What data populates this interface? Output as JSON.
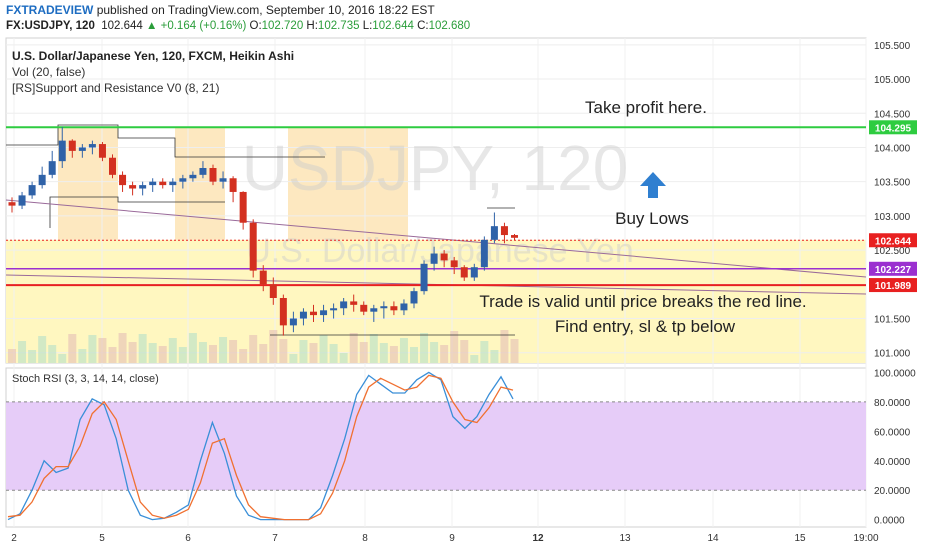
{
  "header": {
    "brand": "FXTRADEVIEW",
    "published": "published on TradingView.com, September 10, 2016 18:22 EST",
    "symbol": "FX:USDJPY, 120",
    "last": "102.644",
    "change_arrow": "▲",
    "change": "+0.164 (+0.16%)",
    "o_label": "O:",
    "o": "102.720",
    "h_label": "H:",
    "h": "102.735",
    "l_label": "L:",
    "l": "102.644",
    "c_label": "C:",
    "c": "102.680"
  },
  "legend": {
    "title": "U.S. Dollar/Japanese Yen, 120, FXCM, Heikin Ashi",
    "vol": "Vol (20, false)",
    "indicator": "[RS]Support and Resistance V0 (8, 21)"
  },
  "watermark": {
    "symbol": "USDJPY, 120",
    "name": "U.S. Dollar/Japanese Yen"
  },
  "annotations": {
    "take_profit": "Take profit here.",
    "buy_lows": "Buy Lows",
    "trade_valid": "Trade is valid until price breaks the red line.",
    "find_entry": "Find entry, sl & tp below"
  },
  "stoch_label": "Stoch RSI (3, 3, 14, 14, close)",
  "colors": {
    "up": "#2f62a8",
    "down": "#d33020",
    "green_line": "#2ecc40",
    "red_line": "#e82020",
    "purple_line": "#9b30d0",
    "trend_line": "#9a6a9a",
    "k_line": "#3a8fd8",
    "d_line": "#f07030",
    "rsi_band": "#e6ccf8",
    "zone_yellow": "#fff7c0",
    "zone_orange": "#fde2b0"
  },
  "chart_data": [
    {
      "type": "candlestick",
      "symbol": "FX:USDJPY",
      "interval": "120",
      "style": "Heikin Ashi",
      "ylim": [
        100.85,
        105.6
      ],
      "yticks": [
        "105.500",
        "105.000",
        "104.500",
        "104.000",
        "103.500",
        "103.000",
        "102.500",
        "102.000",
        "101.500",
        "101.000"
      ],
      "xticks": [
        "2",
        "5",
        "6",
        "7",
        "8",
        "9",
        "12",
        "13",
        "14",
        "15",
        "19:00"
      ],
      "price_labels": [
        {
          "value": 104.295,
          "text": "104.295",
          "color": "#2ecc40"
        },
        {
          "value": 102.644,
          "text": "102.644",
          "color": "#e82020"
        },
        {
          "value": 102.227,
          "text": "102.227",
          "color": "#9b30d0"
        },
        {
          "value": 101.989,
          "text": "101.989",
          "color": "#e82020"
        }
      ],
      "horizontal_lines": [
        {
          "name": "take-profit",
          "value": 104.295,
          "color": "#2ecc40"
        },
        {
          "name": "support-purple",
          "value": 102.227,
          "color": "#9b30d0"
        },
        {
          "name": "invalidation-red",
          "value": 101.989,
          "color": "#e82020"
        }
      ],
      "candles": [
        [
          103.2,
          103.27,
          103.05,
          103.15
        ],
        [
          103.15,
          103.35,
          103.1,
          103.3
        ],
        [
          103.3,
          103.5,
          103.25,
          103.45
        ],
        [
          103.45,
          103.72,
          103.4,
          103.6
        ],
        [
          103.6,
          103.95,
          103.55,
          103.8
        ],
        [
          103.8,
          104.3,
          103.7,
          104.1
        ],
        [
          104.1,
          104.12,
          103.85,
          103.95
        ],
        [
          103.95,
          104.05,
          103.85,
          104.0
        ],
        [
          104.0,
          104.1,
          103.9,
          104.05
        ],
        [
          104.05,
          104.08,
          103.8,
          103.85
        ],
        [
          103.85,
          103.9,
          103.55,
          103.6
        ],
        [
          103.6,
          103.65,
          103.35,
          103.45
        ],
        [
          103.45,
          103.5,
          103.3,
          103.4
        ],
        [
          103.4,
          103.5,
          103.3,
          103.45
        ],
        [
          103.45,
          103.55,
          103.35,
          103.5
        ],
        [
          103.5,
          103.55,
          103.4,
          103.45
        ],
        [
          103.45,
          103.55,
          103.35,
          103.5
        ],
        [
          103.5,
          103.6,
          103.4,
          103.55
        ],
        [
          103.55,
          103.65,
          103.5,
          103.6
        ],
        [
          103.6,
          103.8,
          103.55,
          103.7
        ],
        [
          103.7,
          103.75,
          103.45,
          103.5
        ],
        [
          103.5,
          103.65,
          103.4,
          103.55
        ],
        [
          103.55,
          103.58,
          103.2,
          103.35
        ],
        [
          103.35,
          103.36,
          102.8,
          102.9
        ],
        [
          102.9,
          102.95,
          102.1,
          102.2
        ],
        [
          102.2,
          102.28,
          101.9,
          102.0
        ],
        [
          102.0,
          102.1,
          101.7,
          101.8
        ],
        [
          101.8,
          101.85,
          101.25,
          101.4
        ],
        [
          101.4,
          101.6,
          101.3,
          101.5
        ],
        [
          101.5,
          101.65,
          101.4,
          101.6
        ],
        [
          101.6,
          101.7,
          101.45,
          101.55
        ],
        [
          101.55,
          101.7,
          101.45,
          101.62
        ],
        [
          101.62,
          101.72,
          101.5,
          101.65
        ],
        [
          101.65,
          101.8,
          101.55,
          101.75
        ],
        [
          101.75,
          101.85,
          101.6,
          101.7
        ],
        [
          101.7,
          101.75,
          101.55,
          101.6
        ],
        [
          101.6,
          101.7,
          101.45,
          101.65
        ],
        [
          101.65,
          101.75,
          101.5,
          101.68
        ],
        [
          101.68,
          101.75,
          101.55,
          101.62
        ],
        [
          101.62,
          101.78,
          101.55,
          101.72
        ],
        [
          101.72,
          101.95,
          101.65,
          101.9
        ],
        [
          101.9,
          102.35,
          101.85,
          102.3
        ],
        [
          102.3,
          102.55,
          102.2,
          102.45
        ],
        [
          102.45,
          102.5,
          102.25,
          102.35
        ],
        [
          102.35,
          102.4,
          102.15,
          102.25
        ],
        [
          102.25,
          102.28,
          102.05,
          102.1
        ],
        [
          102.1,
          102.3,
          102.05,
          102.25
        ],
        [
          102.25,
          102.7,
          102.2,
          102.65
        ],
        [
          102.65,
          103.05,
          102.6,
          102.85
        ],
        [
          102.85,
          102.9,
          102.6,
          102.72
        ],
        [
          102.72,
          102.735,
          102.644,
          102.68
        ]
      ]
    },
    {
      "type": "line",
      "name": "Stoch RSI (3, 3, 14, 14, close)",
      "ylim": [
        -5,
        103
      ],
      "yticks": [
        "100.0000",
        "80.0000",
        "60.0000",
        "40.0000",
        "20.0000",
        "0.0000"
      ],
      "band": [
        20,
        80
      ],
      "series": [
        {
          "name": "K",
          "values": [
            0,
            4,
            20,
            40,
            32,
            35,
            68,
            82,
            78,
            55,
            20,
            3,
            0,
            1,
            5,
            10,
            40,
            66,
            45,
            16,
            3,
            0,
            0,
            0,
            0,
            0,
            8,
            30,
            55,
            85,
            98,
            92,
            86,
            86,
            95,
            100,
            95,
            70,
            62,
            70,
            85,
            97,
            82
          ]
        },
        {
          "name": "D",
          "values": [
            2,
            3,
            12,
            28,
            36,
            36,
            50,
            72,
            80,
            68,
            40,
            12,
            3,
            1,
            3,
            7,
            25,
            52,
            55,
            30,
            10,
            2,
            1,
            0,
            0,
            0,
            4,
            18,
            40,
            70,
            90,
            96,
            92,
            88,
            90,
            98,
            96,
            80,
            68,
            66,
            76,
            90,
            88
          ]
        }
      ]
    }
  ]
}
